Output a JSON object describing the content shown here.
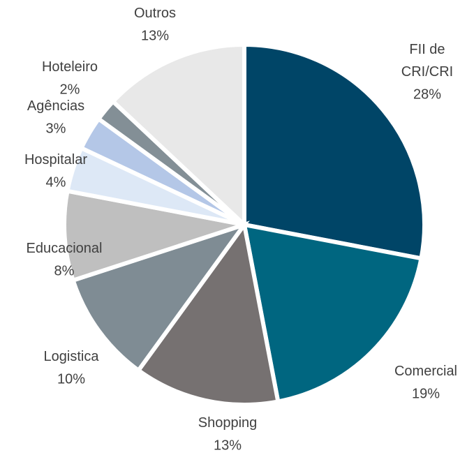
{
  "chart_data": {
    "type": "pie",
    "categories": [
      "FII de CRI/CRI",
      "Comercial",
      "Shopping",
      "Logistica",
      "Educacional",
      "Hospitalar",
      "Agências",
      "Hoteleiro",
      "Outros"
    ],
    "values": [
      28,
      19,
      13,
      10,
      8,
      4,
      3,
      2,
      13
    ],
    "value_labels": [
      "28%",
      "19%",
      "13%",
      "10%",
      "8%",
      "4%",
      "3%",
      "2%",
      "13%"
    ],
    "colors": [
      "#004567",
      "#006680",
      "#767171",
      "#7f8c94",
      "#bfbfbf",
      "#dde8f6",
      "#b4c7e7",
      "#838f96",
      "#e8e8e8"
    ]
  }
}
